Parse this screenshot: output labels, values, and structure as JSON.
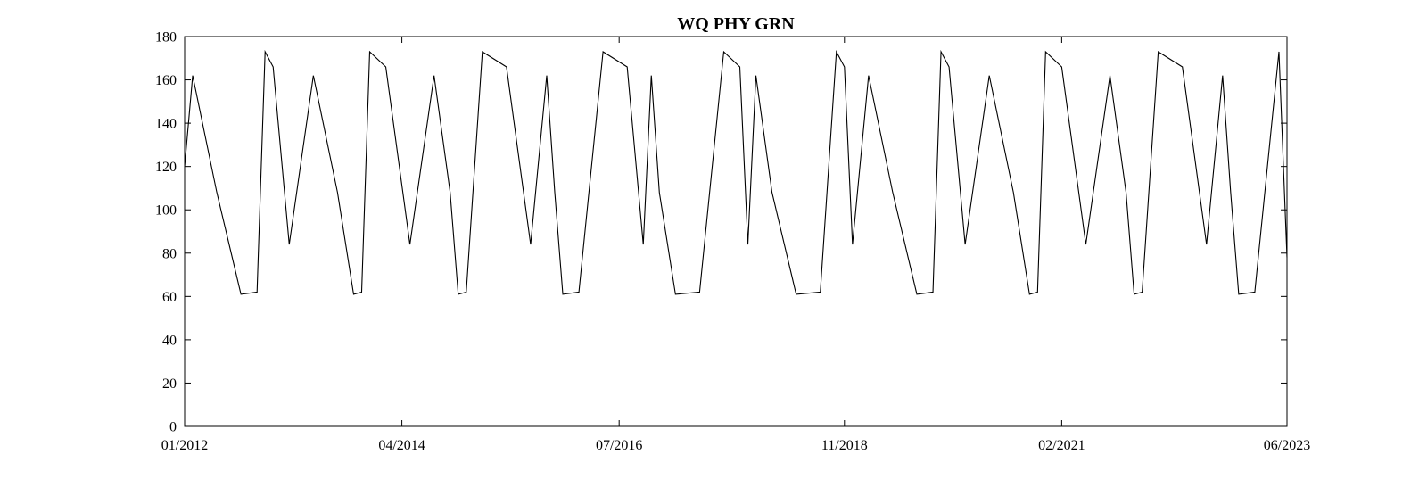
{
  "chart_data": {
    "type": "line",
    "title": "WQ PHY GRN",
    "xlabel": "",
    "ylabel": "",
    "x_range": [
      "2012-01",
      "2023-06"
    ],
    "ylim": [
      0,
      180
    ],
    "grid": false,
    "legend": "none",
    "x_tick_labels": [
      "01/2012",
      "04/2014",
      "07/2016",
      "11/2018",
      "02/2021",
      "06/2023"
    ],
    "y_tick_labels": [
      "0",
      "20",
      "40",
      "60",
      "80",
      "100",
      "120",
      "140",
      "160",
      "180"
    ],
    "series": [
      {
        "color": "#000000",
        "x": [
          "2012-01",
          "2012-02",
          "2012-05",
          "2012-08",
          "2012-10",
          "2012-11",
          "2012-12",
          "2013-02",
          "2013-05",
          "2013-08",
          "2013-10",
          "2013-11",
          "2013-12",
          "2014-02",
          "2014-05",
          "2014-08",
          "2014-10",
          "2014-11",
          "2014-12",
          "2015-02",
          "2015-05",
          "2015-08",
          "2015-10",
          "2015-11",
          "2015-12",
          "2016-02",
          "2016-05",
          "2016-08",
          "2016-10",
          "2016-11",
          "2016-12",
          "2017-02",
          "2017-05",
          "2017-08",
          "2017-10",
          "2017-11",
          "2017-12",
          "2018-02",
          "2018-05",
          "2018-08",
          "2018-10",
          "2018-11",
          "2018-12",
          "2019-02",
          "2019-05",
          "2019-08",
          "2019-10",
          "2019-11",
          "2019-12",
          "2020-02",
          "2020-05",
          "2020-08",
          "2020-10",
          "2020-11",
          "2020-12",
          "2021-02",
          "2021-05",
          "2021-08",
          "2021-10",
          "2021-11",
          "2021-12",
          "2022-02",
          "2022-05",
          "2022-08",
          "2022-10",
          "2022-11",
          "2022-12",
          "2023-02",
          "2023-05",
          "2023-06"
        ],
        "y": [
          120,
          162,
          108,
          61,
          62,
          173,
          166,
          84,
          162,
          108,
          61,
          62,
          173,
          166,
          84,
          162,
          108,
          61,
          62,
          173,
          166,
          84,
          162,
          108,
          61,
          62,
          173,
          166,
          84,
          162,
          108,
          61,
          62,
          173,
          166,
          84,
          162,
          108,
          61,
          62,
          173,
          166,
          84,
          162,
          108,
          61,
          62,
          173,
          166,
          84,
          162,
          108,
          61,
          62,
          173,
          166,
          84,
          162,
          108,
          61,
          62,
          173,
          166,
          84,
          162,
          108,
          61,
          62,
          173,
          78
        ]
      }
    ]
  }
}
